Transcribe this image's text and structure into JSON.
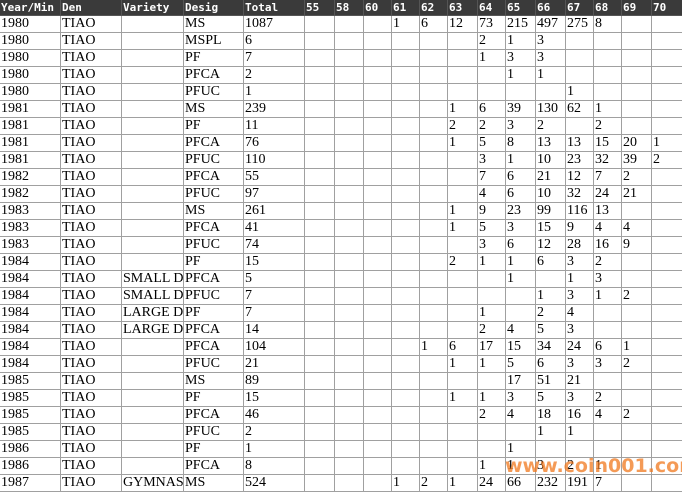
{
  "table": {
    "columns": [
      "Year/Min",
      "Den",
      "Variety",
      "Desig",
      "Total",
      "55",
      "58",
      "60",
      "61",
      "62",
      "63",
      "64",
      "65",
      "66",
      "67",
      "68",
      "69",
      "70"
    ],
    "rows": [
      [
        1980,
        "TIAO",
        null,
        "MS",
        1087,
        null,
        null,
        null,
        1,
        6,
        12,
        73,
        215,
        497,
        275,
        8,
        null,
        null
      ],
      [
        1980,
        "TIAO",
        null,
        "MSPL",
        6,
        null,
        null,
        null,
        null,
        null,
        null,
        2,
        1,
        3,
        null,
        null,
        null,
        null
      ],
      [
        1980,
        "TIAO",
        null,
        "PF",
        7,
        null,
        null,
        null,
        null,
        null,
        null,
        1,
        3,
        3,
        null,
        null,
        null,
        null
      ],
      [
        1980,
        "TIAO",
        null,
        "PFCA",
        2,
        null,
        null,
        null,
        null,
        null,
        null,
        null,
        1,
        1,
        null,
        null,
        null,
        null
      ],
      [
        1980,
        "TIAO",
        null,
        "PFUC",
        1,
        null,
        null,
        null,
        null,
        null,
        null,
        null,
        null,
        null,
        1,
        null,
        null,
        null
      ],
      [
        1981,
        "TIAO",
        null,
        "MS",
        239,
        null,
        null,
        null,
        null,
        null,
        1,
        6,
        39,
        130,
        62,
        1,
        null,
        null
      ],
      [
        1981,
        "TIAO",
        null,
        "PF",
        11,
        null,
        null,
        null,
        null,
        null,
        2,
        2,
        3,
        2,
        null,
        2,
        null,
        null
      ],
      [
        1981,
        "TIAO",
        null,
        "PFCA",
        76,
        null,
        null,
        null,
        null,
        null,
        1,
        5,
        8,
        13,
        13,
        15,
        20,
        1
      ],
      [
        1981,
        "TIAO",
        null,
        "PFUC",
        110,
        null,
        null,
        null,
        null,
        null,
        null,
        3,
        1,
        10,
        23,
        32,
        39,
        2
      ],
      [
        1982,
        "TIAO",
        null,
        "PFCA",
        55,
        null,
        null,
        null,
        null,
        null,
        null,
        7,
        6,
        21,
        12,
        7,
        2,
        null
      ],
      [
        1982,
        "TIAO",
        null,
        "PFUC",
        97,
        null,
        null,
        null,
        null,
        null,
        null,
        4,
        6,
        10,
        32,
        24,
        21,
        null
      ],
      [
        1983,
        "TIAO",
        null,
        "MS",
        261,
        null,
        null,
        null,
        null,
        null,
        1,
        9,
        23,
        99,
        116,
        13,
        null,
        null
      ],
      [
        1983,
        "TIAO",
        null,
        "PFCA",
        41,
        null,
        null,
        null,
        null,
        null,
        1,
        5,
        3,
        15,
        9,
        4,
        4,
        null
      ],
      [
        1983,
        "TIAO",
        null,
        "PFUC",
        74,
        null,
        null,
        null,
        null,
        null,
        null,
        3,
        6,
        12,
        28,
        16,
        9,
        null
      ],
      [
        1984,
        "TIAO",
        null,
        "PF",
        15,
        null,
        null,
        null,
        null,
        null,
        2,
        1,
        1,
        6,
        3,
        2,
        null,
        null
      ],
      [
        1984,
        "TIAO",
        "SMALL D",
        "PFCA",
        5,
        null,
        null,
        null,
        null,
        null,
        null,
        null,
        1,
        null,
        1,
        3,
        null,
        null
      ],
      [
        1984,
        "TIAO",
        "SMALL D",
        "PFUC",
        7,
        null,
        null,
        null,
        null,
        null,
        null,
        null,
        null,
        1,
        3,
        1,
        2,
        null
      ],
      [
        1984,
        "TIAO",
        "LARGE D",
        "PF",
        7,
        null,
        null,
        null,
        null,
        null,
        null,
        1,
        null,
        2,
        4,
        null,
        null,
        null
      ],
      [
        1984,
        "TIAO",
        "LARGE D",
        "PFCA",
        14,
        null,
        null,
        null,
        null,
        null,
        null,
        2,
        4,
        5,
        3,
        null,
        null,
        null
      ],
      [
        1984,
        "TIAO",
        null,
        "PFCA",
        104,
        null,
        null,
        null,
        null,
        1,
        6,
        17,
        15,
        34,
        24,
        6,
        1,
        null
      ],
      [
        1984,
        "TIAO",
        null,
        "PFUC",
        21,
        null,
        null,
        null,
        null,
        null,
        1,
        1,
        5,
        6,
        3,
        3,
        2,
        null
      ],
      [
        1985,
        "TIAO",
        null,
        "MS",
        89,
        null,
        null,
        null,
        null,
        null,
        null,
        null,
        17,
        51,
        21,
        null,
        null,
        null
      ],
      [
        1985,
        "TIAO",
        null,
        "PF",
        15,
        null,
        null,
        null,
        null,
        null,
        1,
        1,
        3,
        5,
        3,
        2,
        null,
        null
      ],
      [
        1985,
        "TIAO",
        null,
        "PFCA",
        46,
        null,
        null,
        null,
        null,
        null,
        null,
        2,
        4,
        18,
        16,
        4,
        2,
        null
      ],
      [
        1985,
        "TIAO",
        null,
        "PFUC",
        2,
        null,
        null,
        null,
        null,
        null,
        null,
        null,
        null,
        1,
        1,
        null,
        null,
        null
      ],
      [
        1986,
        "TIAO",
        null,
        "PF",
        1,
        null,
        null,
        null,
        null,
        null,
        null,
        null,
        1,
        null,
        null,
        null,
        null,
        null
      ],
      [
        1986,
        "TIAO",
        null,
        "PFCA",
        8,
        null,
        null,
        null,
        null,
        null,
        null,
        1,
        1,
        3,
        2,
        1,
        null,
        null
      ],
      [
        1987,
        "TIAO",
        "GYMNAST",
        "MS",
        524,
        null,
        null,
        null,
        1,
        2,
        1,
        24,
        66,
        232,
        191,
        7,
        null,
        null
      ]
    ]
  },
  "watermark": "www.coin001.com"
}
